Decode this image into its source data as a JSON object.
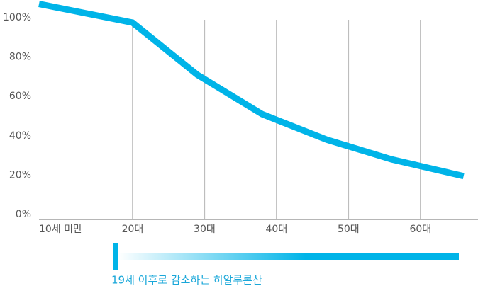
{
  "chart_data": {
    "type": "line",
    "x": [
      7,
      20,
      29,
      38,
      47,
      56,
      66
    ],
    "series": [
      {
        "color": "#00b4e8",
        "values": [
          107,
          97.5,
          71,
          51,
          38,
          28,
          19.5
        ]
      }
    ],
    "xlim": [
      7,
      68
    ],
    "xticks": [
      {
        "value": 10,
        "label": "10세 미만"
      },
      {
        "value": 20,
        "label": "20대"
      },
      {
        "value": 30,
        "label": "30대"
      },
      {
        "value": 40,
        "label": "40대"
      },
      {
        "value": 50,
        "label": "50대"
      },
      {
        "value": 60,
        "label": "60대"
      }
    ],
    "ylim": [
      0,
      109
    ],
    "yticks": [
      {
        "value": 0,
        "label": "0%"
      },
      {
        "value": 20,
        "label": "20%"
      },
      {
        "value": 40,
        "label": "40%"
      },
      {
        "value": 60,
        "label": "60%"
      },
      {
        "value": 80,
        "label": "80%"
      },
      {
        "value": 100,
        "label": "100%"
      }
    ],
    "grid": true,
    "annotation": "19세 이후로 감소하는 히알루론산"
  }
}
